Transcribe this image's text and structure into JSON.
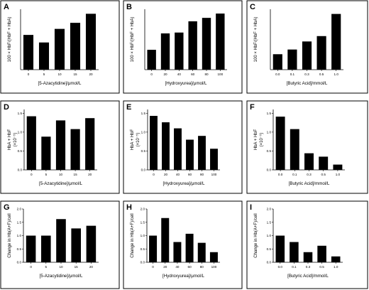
{
  "chart_data": [
    {
      "panel": "A",
      "type": "bar",
      "categories": [
        "0",
        "5",
        "10",
        "15",
        "20"
      ],
      "values": [
        2.3,
        1.8,
        2.7,
        3.1,
        3.7
      ],
      "ylim": [
        0,
        4
      ],
      "ylabel": "100 × HbF/(HbF + HbA)",
      "xlabel": "[5-Azacytidine]/μmol/L",
      "yticks": []
    },
    {
      "panel": "B",
      "type": "bar",
      "categories": [
        "0",
        "20",
        "40",
        "60",
        "80",
        "100"
      ],
      "values": [
        2.3,
        4.2,
        4.3,
        5.6,
        6.0,
        6.5
      ],
      "ylim": [
        0,
        7
      ],
      "ylabel": "100 × HbF/(HbF + HbA)",
      "xlabel": "[Hydroxyurea]/μmol/L",
      "yticks": []
    },
    {
      "panel": "C",
      "type": "bar",
      "categories": [
        "0.0",
        "0.1",
        "0.3",
        "0.5",
        "1.0"
      ],
      "values": [
        2.3,
        3.0,
        4.2,
        5.0,
        8.3
      ],
      "ylim": [
        0,
        9
      ],
      "ylabel": "100 × HbF/(HbF + HbA)",
      "xlabel": "[Butyric Acid]/mmol/L",
      "yticks": []
    },
    {
      "panel": "D",
      "type": "bar",
      "categories": [
        "0",
        "5",
        "10",
        "15",
        "20"
      ],
      "values": [
        1.42,
        0.88,
        1.31,
        1.08,
        1.37
      ],
      "ylim": [
        0,
        1.6
      ],
      "ylabel": "HbA + HbF",
      "ylabel2": "(×10⁻⁵)",
      "xlabel": "[5-Azacytidine]/μmol/L",
      "yticks": [
        "0.0",
        "0.5",
        "1.0",
        "1.5"
      ]
    },
    {
      "panel": "E",
      "type": "bar",
      "categories": [
        "0",
        "20",
        "40",
        "60",
        "80",
        "100"
      ],
      "values": [
        1.43,
        1.26,
        1.1,
        0.8,
        0.9,
        0.56
      ],
      "ylim": [
        0,
        1.6
      ],
      "ylabel": "HbA + HbF",
      "ylabel2": "(×10⁻⁵)",
      "xlabel": "[Hydroxyurea]/μmol/L",
      "yticks": [
        "0.0",
        "0.5",
        "1.0",
        "1.5"
      ]
    },
    {
      "panel": "F",
      "type": "bar",
      "categories": [
        "0.0",
        "0.1",
        "0.3",
        "0.5",
        "1.0"
      ],
      "values": [
        1.41,
        1.08,
        0.44,
        0.35,
        0.14
      ],
      "ylim": [
        0,
        1.6
      ],
      "ylabel": "HbA + HbF",
      "ylabel2": "(×10⁻⁵)",
      "xlabel": "[Butyric Acid]/mmol/L",
      "yticks": [
        "0.0",
        "0.5",
        "1.0",
        "1.5"
      ]
    },
    {
      "panel": "G",
      "type": "bar",
      "categories": [
        "0",
        "5",
        "10",
        "15",
        "20"
      ],
      "values": [
        1.0,
        1.0,
        1.62,
        1.27,
        1.37
      ],
      "ylim": [
        0,
        2.0
      ],
      "ylabel": "Change in Hb(A+F)/cell",
      "xlabel": "[5-Azacytidine]/μmol/L",
      "yticks": [
        "0.0",
        "0.5",
        "1.0",
        "1.5",
        "2.0"
      ]
    },
    {
      "panel": "H",
      "type": "bar",
      "categories": [
        "0",
        "20",
        "40",
        "60",
        "80",
        "100"
      ],
      "values": [
        1.0,
        1.66,
        0.76,
        1.07,
        0.73,
        0.38
      ],
      "ylim": [
        0,
        2.0
      ],
      "ylabel": "Change in Hb(A+F)/cell",
      "xlabel": "[Hydroxyurea]/μmol/L",
      "yticks": [
        "0.0",
        "0.5",
        "1.0",
        "1.5",
        "2.0"
      ]
    },
    {
      "panel": "I",
      "type": "bar",
      "categories": [
        "0.0",
        "0.1",
        "0.3",
        "0.5",
        "1.0"
      ],
      "values": [
        1.0,
        0.76,
        0.38,
        0.62,
        0.22
      ],
      "ylim": [
        0,
        2.0
      ],
      "ylabel": "Change in Hb(A+F)/cell",
      "xlabel": "[Butyric Acid]/mmol/L",
      "yticks": [
        "0.0",
        "0.5",
        "1.0",
        "1.5",
        "2.0"
      ]
    }
  ]
}
